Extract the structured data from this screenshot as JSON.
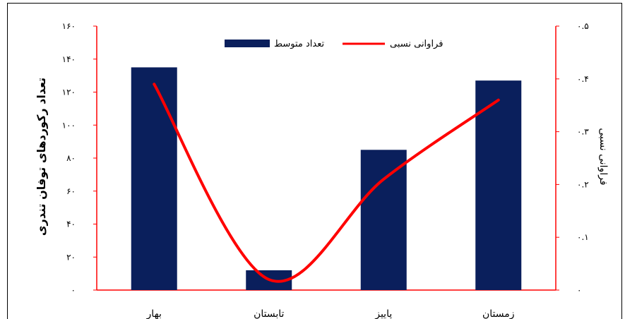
{
  "chart_data": {
    "type": "bar+line",
    "categories": [
      "بهار",
      "تابستان",
      "پاییز",
      "زمستان"
    ],
    "series": [
      {
        "name": "تعداد متوسط",
        "type": "bar",
        "axis": "left",
        "color": "#0a1f5c",
        "values": [
          135,
          12,
          85,
          127
        ]
      },
      {
        "name": "فراوانی نسبی",
        "type": "line",
        "axis": "right",
        "color": "#ff0000",
        "values": [
          0.39,
          0.02,
          0.21,
          0.36
        ]
      }
    ],
    "y_left": {
      "label": "تعداد رکوردهای توفان تندری",
      "range": [
        0,
        160
      ],
      "ticks": [
        "۰",
        "۲۰",
        "۴۰",
        "۶۰",
        "۸۰",
        "۱۰۰",
        "۱۲۰",
        "۱۴۰",
        "۱۶۰"
      ]
    },
    "y_right": {
      "label": "فراوانی نسبی",
      "range": [
        0,
        0.5
      ],
      "ticks": [
        "۰",
        "۰.۱",
        "۰.۲",
        "۰.۳",
        "۰.۴",
        "۰.۵"
      ]
    },
    "legend": {
      "placement": "top-center"
    },
    "grid": false
  }
}
